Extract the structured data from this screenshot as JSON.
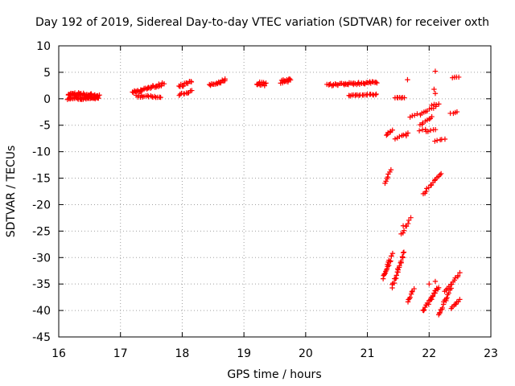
{
  "chart_data": {
    "type": "scatter",
    "title": "Day 192 of 2019, Sidereal Day-to-day VTEC variation (SDTVAR) for receiver oxth",
    "xlabel": "GPS time / hours",
    "ylabel": "SDTVAR / TECUs",
    "xlim": [
      16,
      23
    ],
    "ylim": [
      -45,
      10
    ],
    "xticks": [
      "16",
      "17",
      "18",
      "19",
      "20",
      "21",
      "22",
      "23"
    ],
    "yticks": [
      "10",
      "5",
      "0",
      "-5",
      "-10",
      "-15",
      "-20",
      "-25",
      "-30",
      "-35",
      "-40",
      "-45"
    ],
    "grid": true,
    "marker": "plus",
    "color": "#ff0000",
    "series": [
      {
        "name": "SDTVAR",
        "segments": [
          {
            "x0": 16.15,
            "x1": 16.65,
            "y0": 1.0,
            "y1": 0.5,
            "jitter": 0.6,
            "n": 50
          },
          {
            "x0": 16.15,
            "x1": 16.65,
            "y0": 0.0,
            "y1": 0.2,
            "jitter": 0.5,
            "n": 40
          },
          {
            "x0": 17.2,
            "x1": 17.7,
            "y0": 1.2,
            "y1": 2.8,
            "jitter": 0.5,
            "n": 35
          },
          {
            "x0": 17.25,
            "x1": 17.65,
            "y0": 0.5,
            "y1": 0.4,
            "jitter": 0.4,
            "n": 18
          },
          {
            "x0": 17.95,
            "x1": 18.15,
            "y0": 2.3,
            "y1": 3.2,
            "jitter": 0.5,
            "n": 12
          },
          {
            "x0": 17.95,
            "x1": 18.15,
            "y0": 0.8,
            "y1": 1.4,
            "jitter": 0.4,
            "n": 10
          },
          {
            "x0": 18.45,
            "x1": 18.7,
            "y0": 2.5,
            "y1": 3.6,
            "jitter": 0.5,
            "n": 16
          },
          {
            "x0": 19.2,
            "x1": 19.35,
            "y0": 2.8,
            "y1": 2.8,
            "jitter": 0.7,
            "n": 14
          },
          {
            "x0": 19.6,
            "x1": 19.75,
            "y0": 3.2,
            "y1": 3.5,
            "jitter": 0.6,
            "n": 14
          },
          {
            "x0": 20.35,
            "x1": 21.15,
            "y0": 2.6,
            "y1": 3.1,
            "jitter": 0.4,
            "n": 45
          },
          {
            "x0": 20.7,
            "x1": 21.15,
            "y0": 0.6,
            "y1": 0.8,
            "jitter": 0.2,
            "n": 20
          },
          {
            "x0": 21.45,
            "x1": 21.6,
            "y0": 0.2,
            "y1": 0.2,
            "jitter": 0.1,
            "n": 7
          },
          {
            "x0": 21.3,
            "x1": 21.4,
            "y0": -6.8,
            "y1": -6.0,
            "jitter": 0.2,
            "n": 6
          },
          {
            "x0": 21.45,
            "x1": 21.65,
            "y0": -7.5,
            "y1": -6.5,
            "jitter": 0.2,
            "n": 7
          },
          {
            "x0": 21.7,
            "x1": 21.8,
            "y0": -3.5,
            "y1": -2.8,
            "jitter": 0.2,
            "n": 4
          },
          {
            "x0": 21.85,
            "x1": 22.05,
            "y0": -5.0,
            "y1": -3.5,
            "jitter": 0.3,
            "n": 8
          },
          {
            "x0": 21.85,
            "x1": 22.1,
            "y0": -3.0,
            "y1": -1.5,
            "jitter": 0.3,
            "n": 9
          },
          {
            "x0": 22.05,
            "x1": 22.15,
            "y0": -1.2,
            "y1": -1.0,
            "jitter": 0.2,
            "n": 4
          },
          {
            "x0": 21.95,
            "x1": 22.1,
            "y0": -6.2,
            "y1": -5.8,
            "jitter": 0.2,
            "n": 5
          },
          {
            "x0": 21.85,
            "x1": 21.95,
            "y0": -6.0,
            "y1": -5.8,
            "jitter": 0.2,
            "n": 3
          },
          {
            "x0": 22.1,
            "x1": 22.25,
            "y0": -8.0,
            "y1": -7.6,
            "jitter": 0.1,
            "n": 5
          },
          {
            "x0": 22.35,
            "x1": 22.45,
            "y0": -2.8,
            "y1": -2.5,
            "jitter": 0.1,
            "n": 4
          },
          {
            "x0": 22.38,
            "x1": 22.48,
            "y0": 4.0,
            "y1": 4.1,
            "jitter": 0.1,
            "n": 4
          },
          {
            "x0": 21.28,
            "x1": 21.38,
            "y0": -16.0,
            "y1": -13.5,
            "jitter": 0.2,
            "n": 7
          },
          {
            "x0": 21.9,
            "x1": 22.2,
            "y0": -18.0,
            "y1": -14.0,
            "jitter": 0.3,
            "n": 14
          },
          {
            "x0": 21.55,
            "x1": 21.7,
            "y0": -25.5,
            "y1": -22.5,
            "jitter": 0.6,
            "n": 8
          },
          {
            "x0": 21.25,
            "x1": 21.4,
            "y0": -34.0,
            "y1": -29.5,
            "jitter": 0.8,
            "n": 18
          },
          {
            "x0": 21.4,
            "x1": 21.6,
            "y0": -35.5,
            "y1": -29.0,
            "jitter": 0.8,
            "n": 22
          },
          {
            "x0": 21.65,
            "x1": 21.75,
            "y0": -38.5,
            "y1": -35.8,
            "jitter": 0.4,
            "n": 8
          },
          {
            "x0": 21.9,
            "x1": 22.15,
            "y0": -40.0,
            "y1": -35.5,
            "jitter": 0.7,
            "n": 22
          },
          {
            "x0": 22.15,
            "x1": 22.35,
            "y0": -41.0,
            "y1": -36.0,
            "jitter": 0.6,
            "n": 16
          },
          {
            "x0": 22.25,
            "x1": 22.5,
            "y0": -36.5,
            "y1": -33.0,
            "jitter": 0.4,
            "n": 12
          },
          {
            "x0": 22.35,
            "x1": 22.5,
            "y0": -39.5,
            "y1": -38.0,
            "jitter": 0.3,
            "n": 8
          }
        ],
        "points": [
          {
            "x": 22.1,
            "y": 5.2
          },
          {
            "x": 21.65,
            "y": 3.6
          },
          {
            "x": 22.08,
            "y": 1.8
          },
          {
            "x": 22.1,
            "y": 1.0
          },
          {
            "x": 21.63,
            "y": -7.0
          },
          {
            "x": 21.58,
            "y": -24.0
          },
          {
            "x": 22.0,
            "y": -35.0
          },
          {
            "x": 22.1,
            "y": -34.5
          }
        ]
      }
    ]
  }
}
